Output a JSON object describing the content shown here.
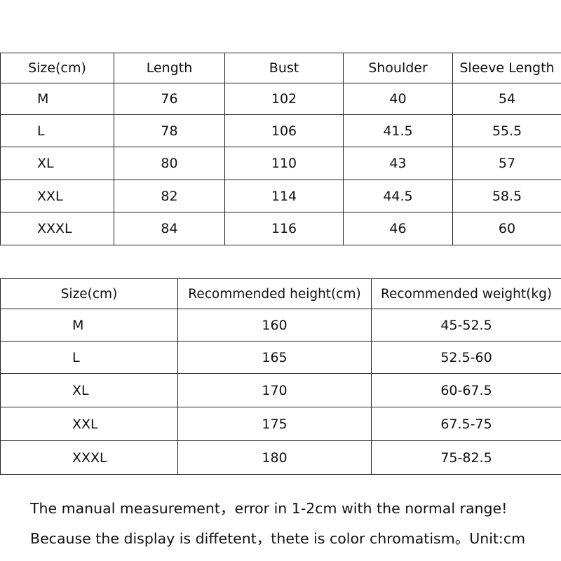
{
  "tables": [
    {
      "header": [
        "Size(cm)",
        "Length",
        "Bust",
        "Shoulder",
        "Sleeve Length"
      ],
      "rows": [
        [
          "M",
          "76",
          "102",
          "40",
          "54"
        ],
        [
          "L",
          "78",
          "106",
          "41.5",
          "55.5"
        ],
        [
          "XL",
          "80",
          "110",
          "43",
          "57"
        ],
        [
          "XXL",
          "82",
          "114",
          "44.5",
          "58.5"
        ],
        [
          "XXXL",
          "84",
          "116",
          "46",
          "60"
        ]
      ]
    },
    {
      "header": [
        "Size(cm)",
        "Recommended height(cm)",
        "Recommended weight(kg)"
      ],
      "rows": [
        [
          "M",
          "160",
          "45-52.5"
        ],
        [
          "L",
          "165",
          "52.5-60"
        ],
        [
          "XL",
          "170",
          "60-67.5"
        ],
        [
          "XXL",
          "175",
          "67.5-75"
        ],
        [
          "XXXL",
          "180",
          "75-82.5"
        ]
      ]
    }
  ],
  "notes": [
    "The manual measurement，error in 1-2cm with the normal range!",
    "Because the display is diffetent，thete is color chromatism。Unit:cm"
  ]
}
